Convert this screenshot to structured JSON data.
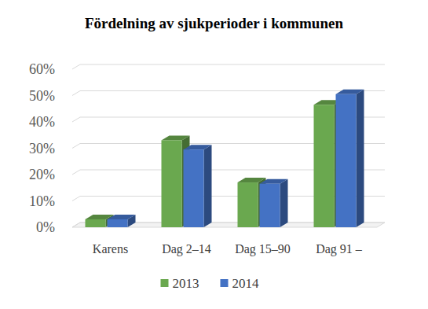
{
  "chart_data": {
    "type": "bar",
    "title": "Fördelning av sjukperioder i kommunen",
    "categories": [
      "Karens",
      "Dag 2–14",
      "Dag 15–90",
      "Dag 91 –"
    ],
    "series": [
      {
        "name": "2013",
        "color": "#6aa84f",
        "values": [
          3,
          33,
          17,
          46.5
        ]
      },
      {
        "name": "2014",
        "color": "#4472c4",
        "values": [
          3,
          29.5,
          16.5,
          50.5
        ]
      }
    ],
    "ylim": [
      0,
      60
    ],
    "yticks": [
      {
        "value": 0,
        "label": "0%"
      },
      {
        "value": 10,
        "label": "10%"
      },
      {
        "value": 20,
        "label": "20%"
      },
      {
        "value": 30,
        "label": "30%"
      },
      {
        "value": 40,
        "label": "40%"
      },
      {
        "value": 50,
        "label": "50%"
      },
      {
        "value": 60,
        "label": "60%"
      }
    ],
    "grid": true,
    "legend": "bottom"
  }
}
